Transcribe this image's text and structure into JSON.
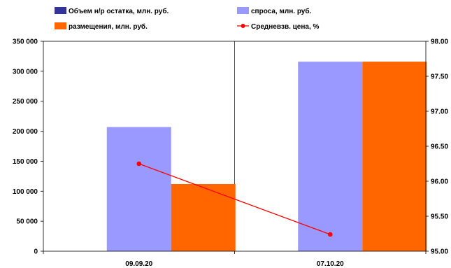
{
  "chart_data": {
    "type": "bar",
    "categories": [
      "09.09.20",
      "07.10.20"
    ],
    "series": [
      {
        "name": "Объем н/р остатка, млн. руб.",
        "kind": "bar",
        "axis": "left",
        "color": "#333399",
        "values": [
          0,
          0
        ]
      },
      {
        "name": "спроса, млн. руб.",
        "kind": "bar",
        "axis": "left",
        "color": "#9999FF",
        "values": [
          207000,
          316000
        ]
      },
      {
        "name": "размещения, млн. руб.",
        "kind": "bar",
        "axis": "left",
        "color": "#FF6600",
        "values": [
          112000,
          316000
        ]
      },
      {
        "name": "Средневзв. цена, %",
        "kind": "line",
        "axis": "right",
        "color": "#FF0000",
        "values": [
          96.25,
          95.24
        ]
      }
    ],
    "y_left": {
      "min": 0,
      "max": 350000,
      "ticks": [
        0,
        50000,
        100000,
        150000,
        200000,
        250000,
        300000,
        350000
      ],
      "tick_labels": [
        "0",
        "50 000",
        "100 000",
        "150 000",
        "200 000",
        "250 000",
        "300 000",
        "350 000"
      ]
    },
    "y_right": {
      "min": 95.0,
      "max": 98.0,
      "ticks": [
        95.0,
        95.5,
        96.0,
        96.5,
        97.0,
        97.5,
        98.0
      ],
      "tick_labels": [
        "95.00",
        "95.50",
        "96.00",
        "96.50",
        "97.00",
        "97.50",
        "98.00"
      ]
    },
    "grid": {
      "vertical": true,
      "horizontal": false
    },
    "legend_position": "top"
  }
}
